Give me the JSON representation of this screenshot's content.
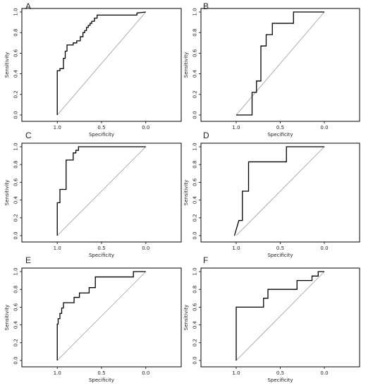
{
  "chart_data": [
    {
      "type": "line",
      "panel_label": "A",
      "xlabel": "Specificity",
      "ylabel": "Sensitivity",
      "x_reversed": true,
      "xlim": [
        1.4,
        -0.4
      ],
      "ylim": [
        0,
        1
      ],
      "x_ticks": [
        "1.0",
        "0.5",
        "0.0"
      ],
      "y_ticks": [
        "0.0",
        "0.2",
        "0.4",
        "0.6",
        "0.8",
        "1.0"
      ],
      "reference_line": true,
      "series": [
        {
          "x": [
            1.0,
            1.0,
            0.97,
            0.97,
            0.93,
            0.93,
            0.91,
            0.91,
            0.89,
            0.89,
            0.86,
            0.86,
            0.82,
            0.82,
            0.78,
            0.78,
            0.74,
            0.74,
            0.71,
            0.71,
            0.69,
            0.69,
            0.67,
            0.67,
            0.65,
            0.65,
            0.63,
            0.63,
            0.61,
            0.61,
            0.58,
            0.58,
            0.55,
            0.55,
            0.52,
            0.52,
            0.1,
            0.1,
            0.0
          ],
          "y": [
            0.0,
            0.43,
            0.43,
            0.45,
            0.45,
            0.55,
            0.55,
            0.62,
            0.62,
            0.68,
            0.68,
            0.68,
            0.68,
            0.7,
            0.7,
            0.72,
            0.72,
            0.76,
            0.76,
            0.8,
            0.8,
            0.82,
            0.82,
            0.85,
            0.85,
            0.87,
            0.87,
            0.89,
            0.89,
            0.91,
            0.91,
            0.94,
            0.94,
            0.97,
            0.97,
            0.97,
            0.97,
            0.99,
            1.0
          ]
        }
      ]
    },
    {
      "type": "line",
      "panel_label": "B",
      "xlabel": "Specificity",
      "ylabel": "Sensitivity",
      "x_reversed": true,
      "xlim": [
        1.4,
        -0.4
      ],
      "ylim": [
        0,
        1
      ],
      "x_ticks": [
        "1.0",
        "0.5",
        "0.0"
      ],
      "y_ticks": [
        "0.0",
        "0.2",
        "0.4",
        "0.6",
        "0.8",
        "1.0"
      ],
      "reference_line": true,
      "series": [
        {
          "x": [
            1.0,
            0.82,
            0.82,
            0.77,
            0.77,
            0.72,
            0.72,
            0.66,
            0.66,
            0.59,
            0.59,
            0.47,
            0.47,
            0.35,
            0.35,
            0.0
          ],
          "y": [
            0.0,
            0.0,
            0.22,
            0.22,
            0.33,
            0.33,
            0.67,
            0.67,
            0.78,
            0.78,
            0.89,
            0.89,
            0.89,
            0.89,
            1.0,
            1.0
          ]
        }
      ]
    },
    {
      "type": "line",
      "panel_label": "C",
      "xlabel": "Specificity",
      "ylabel": "Sensitivity",
      "x_reversed": true,
      "xlim": [
        1.4,
        -0.4
      ],
      "ylim": [
        0,
        1
      ],
      "x_ticks": [
        "1.0",
        "0.5",
        "0.0"
      ],
      "y_ticks": [
        "0.0",
        "0.2",
        "0.4",
        "0.6",
        "0.8",
        "1.0"
      ],
      "reference_line": true,
      "series": [
        {
          "x": [
            1.0,
            1.0,
            0.97,
            0.97,
            0.9,
            0.9,
            0.87,
            0.87,
            0.82,
            0.82,
            0.79,
            0.79,
            0.76,
            0.76,
            0.0
          ],
          "y": [
            0.0,
            0.37,
            0.37,
            0.52,
            0.52,
            0.85,
            0.85,
            0.85,
            0.85,
            0.93,
            0.93,
            0.96,
            0.96,
            1.0,
            1.0
          ]
        }
      ]
    },
    {
      "type": "line",
      "panel_label": "D",
      "xlabel": "Specificity",
      "ylabel": "Sensitivity",
      "x_reversed": true,
      "xlim": [
        1.4,
        -0.4
      ],
      "ylim": [
        0,
        1
      ],
      "x_ticks": [
        "1.0",
        "0.5",
        "0.0"
      ],
      "y_ticks": [
        "0.0",
        "0.2",
        "0.4",
        "0.6",
        "0.8",
        "1.0"
      ],
      "reference_line": true,
      "series": [
        {
          "x": [
            1.02,
            0.97,
            0.93,
            0.93,
            0.86,
            0.86,
            0.43,
            0.43,
            0.0
          ],
          "y": [
            0.0,
            0.17,
            0.17,
            0.5,
            0.5,
            0.83,
            0.83,
            1.0,
            1.0
          ]
        }
      ]
    },
    {
      "type": "line",
      "panel_label": "E",
      "xlabel": "Specificity",
      "ylabel": "Sensitivity",
      "x_reversed": true,
      "xlim": [
        1.4,
        -0.4
      ],
      "ylim": [
        0,
        1
      ],
      "x_ticks": [
        "1.0",
        "0.5",
        "0.0"
      ],
      "y_ticks": [
        "0.0",
        "0.2",
        "0.4",
        "0.6",
        "0.8",
        "1.0"
      ],
      "reference_line": true,
      "series": [
        {
          "x": [
            1.0,
            1.0,
            0.99,
            0.99,
            0.97,
            0.97,
            0.95,
            0.95,
            0.93,
            0.93,
            0.89,
            0.89,
            0.81,
            0.81,
            0.75,
            0.75,
            0.64,
            0.64,
            0.57,
            0.57,
            0.14,
            0.14,
            0.0
          ],
          "y": [
            0.0,
            0.41,
            0.41,
            0.47,
            0.47,
            0.53,
            0.53,
            0.59,
            0.59,
            0.65,
            0.65,
            0.65,
            0.65,
            0.71,
            0.71,
            0.76,
            0.76,
            0.82,
            0.82,
            0.94,
            0.94,
            1.0,
            1.0
          ]
        }
      ]
    },
    {
      "type": "line",
      "panel_label": "F",
      "xlabel": "Specificity",
      "ylabel": "Sensitivity",
      "x_reversed": true,
      "xlim": [
        1.4,
        -0.4
      ],
      "ylim": [
        0,
        1
      ],
      "x_ticks": [
        "1.0",
        "0.5",
        "0.0"
      ],
      "y_ticks": [
        "0.0",
        "0.2",
        "0.4",
        "0.6",
        "0.8",
        "1.0"
      ],
      "reference_line": true,
      "series": [
        {
          "x": [
            1.0,
            1.0,
            0.69,
            0.69,
            0.64,
            0.64,
            0.55,
            0.55,
            0.44,
            0.44,
            0.31,
            0.31,
            0.14,
            0.14,
            0.07,
            0.07,
            0.0
          ],
          "y": [
            0.0,
            0.6,
            0.6,
            0.7,
            0.7,
            0.8,
            0.8,
            0.8,
            0.8,
            0.8,
            0.8,
            0.9,
            0.9,
            0.95,
            0.95,
            1.0,
            1.0
          ]
        }
      ]
    }
  ]
}
